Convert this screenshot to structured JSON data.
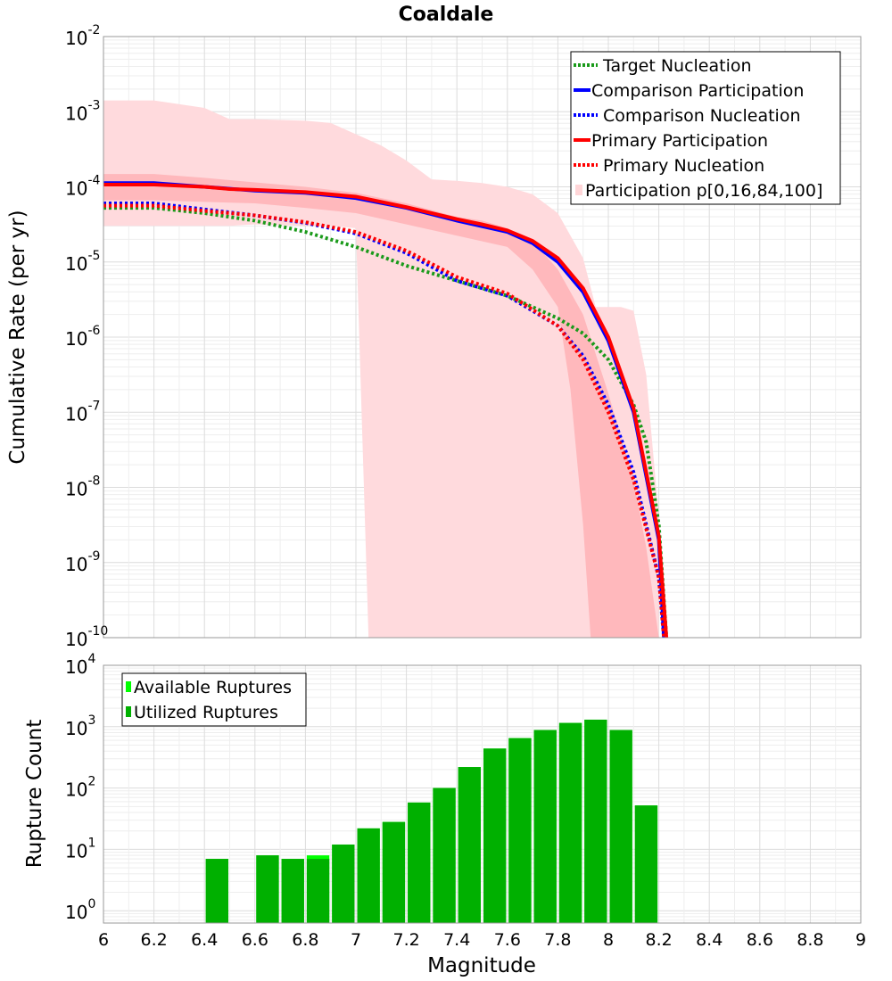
{
  "chart_data": [
    {
      "type": "line",
      "title": "Coaldale",
      "xlabel": "",
      "ylabel": "Cumulative Rate (per yr)",
      "xlim": [
        6,
        9
      ],
      "ylim_log10": [
        -10,
        -2
      ],
      "y_ticks": [
        {
          "base": "10",
          "exp": "-2"
        },
        {
          "base": "10",
          "exp": "-3"
        },
        {
          "base": "10",
          "exp": "-4"
        },
        {
          "base": "10",
          "exp": "-5"
        },
        {
          "base": "10",
          "exp": "-6"
        },
        {
          "base": "10",
          "exp": "-7"
        },
        {
          "base": "10",
          "exp": "-8"
        },
        {
          "base": "10",
          "exp": "-9"
        },
        {
          "base": "10",
          "exp": "-10"
        }
      ],
      "legend": {
        "placement": "top-right",
        "entries": [
          {
            "label": "Target Nucleation",
            "color": "#1a9a1a",
            "style": "dotted"
          },
          {
            "label": "Comparison Participation",
            "color": "#0000ff",
            "style": "solid"
          },
          {
            "label": "Comparison Nucleation",
            "color": "#0000ff",
            "style": "dotted"
          },
          {
            "label": "Primary Participation",
            "color": "#ff0000",
            "style": "solid"
          },
          {
            "label": "Primary Nucleation",
            "color": "#ff0000",
            "style": "dotted"
          },
          {
            "label": "Participation p[0,16,84,100]",
            "color": "#ffd6d8",
            "style": "band"
          }
        ]
      },
      "bands": [
        {
          "name": "p0-p100",
          "color": "#ffdadd",
          "upper": [
            [
              6.0,
              -2.85
            ],
            [
              6.2,
              -2.85
            ],
            [
              6.4,
              -2.95
            ],
            [
              6.5,
              -3.1
            ],
            [
              6.6,
              -3.1
            ],
            [
              6.8,
              -3.12
            ],
            [
              6.9,
              -3.15
            ],
            [
              7.0,
              -3.3
            ],
            [
              7.1,
              -3.45
            ],
            [
              7.2,
              -3.65
            ],
            [
              7.3,
              -3.9
            ],
            [
              7.4,
              -3.92
            ],
            [
              7.5,
              -3.95
            ],
            [
              7.6,
              -4.0
            ],
            [
              7.7,
              -4.1
            ],
            [
              7.8,
              -4.35
            ],
            [
              7.9,
              -4.95
            ],
            [
              7.95,
              -5.6
            ],
            [
              8.0,
              -5.6
            ],
            [
              8.05,
              -5.6
            ],
            [
              8.1,
              -5.65
            ],
            [
              8.15,
              -6.5
            ],
            [
              8.2,
              -8.4
            ],
            [
              8.2,
              -10
            ]
          ],
          "lower": [
            [
              6.0,
              -4.52
            ],
            [
              6.2,
              -4.52
            ],
            [
              6.4,
              -4.52
            ],
            [
              6.5,
              -4.52
            ],
            [
              6.6,
              -4.5
            ],
            [
              6.8,
              -4.52
            ],
            [
              6.9,
              -4.52
            ],
            [
              7.0,
              -4.55
            ],
            [
              7.05,
              -10
            ]
          ]
        },
        {
          "name": "p16-p84",
          "color": "#ffb8bc",
          "upper": [
            [
              6.0,
              -3.83
            ],
            [
              6.2,
              -3.83
            ],
            [
              6.4,
              -3.88
            ],
            [
              6.6,
              -3.94
            ],
            [
              6.8,
              -4.0
            ],
            [
              7.0,
              -4.08
            ],
            [
              7.2,
              -4.22
            ],
            [
              7.4,
              -4.4
            ],
            [
              7.5,
              -4.45
            ],
            [
              7.6,
              -4.55
            ],
            [
              7.7,
              -4.72
            ],
            [
              7.8,
              -5.1
            ],
            [
              7.9,
              -5.7
            ],
            [
              8.0,
              -6.75
            ],
            [
              8.1,
              -7.9
            ],
            [
              8.15,
              -8.8
            ],
            [
              8.2,
              -10
            ]
          ],
          "lower": [
            [
              6.0,
              -4.18
            ],
            [
              6.2,
              -4.18
            ],
            [
              6.4,
              -4.2
            ],
            [
              6.6,
              -4.22
            ],
            [
              6.8,
              -4.28
            ],
            [
              7.0,
              -4.35
            ],
            [
              7.2,
              -4.5
            ],
            [
              7.4,
              -4.65
            ],
            [
              7.6,
              -4.8
            ],
            [
              7.7,
              -5.1
            ],
            [
              7.8,
              -5.6
            ],
            [
              7.85,
              -6.7
            ],
            [
              7.9,
              -8.5
            ],
            [
              7.93,
              -10
            ],
            [
              8.13,
              -10
            ]
          ]
        }
      ],
      "series": [
        {
          "name": "Target Nucleation",
          "color": "#1a9a1a",
          "style": "dotted",
          "x": [
            6.0,
            6.2,
            6.4,
            6.6,
            6.8,
            7.0,
            7.2,
            7.4,
            7.6,
            7.8,
            7.9,
            8.0,
            8.1,
            8.15,
            8.2,
            8.22,
            8.23
          ],
          "y": [
            -4.28,
            -4.28,
            -4.35,
            -4.45,
            -4.6,
            -4.8,
            -5.05,
            -5.25,
            -5.45,
            -5.75,
            -5.95,
            -6.3,
            -6.9,
            -7.4,
            -8.5,
            -9.5,
            -10
          ]
        },
        {
          "name": "Comparison Participation",
          "color": "#0000ff",
          "style": "solid",
          "x": [
            6.0,
            6.2,
            6.4,
            6.6,
            6.8,
            7.0,
            7.2,
            7.4,
            7.6,
            7.7,
            7.8,
            7.9,
            8.0,
            8.1,
            8.2,
            8.22
          ],
          "y": [
            -3.95,
            -3.95,
            -4.0,
            -4.05,
            -4.08,
            -4.15,
            -4.28,
            -4.45,
            -4.6,
            -4.75,
            -5.0,
            -5.4,
            -6.05,
            -7.0,
            -8.7,
            -10
          ]
        },
        {
          "name": "Comparison Nucleation",
          "color": "#0000ff",
          "style": "dotted",
          "x": [
            6.0,
            6.2,
            6.4,
            6.6,
            6.8,
            7.0,
            7.2,
            7.4,
            7.6,
            7.8,
            7.9,
            8.0,
            8.1,
            8.2,
            8.22
          ],
          "y": [
            -4.22,
            -4.22,
            -4.3,
            -4.38,
            -4.48,
            -4.62,
            -4.88,
            -5.25,
            -5.45,
            -5.85,
            -6.25,
            -6.9,
            -7.8,
            -9.2,
            -10
          ]
        },
        {
          "name": "Primary Participation",
          "color": "#ff0000",
          "style": "solid",
          "x": [
            6.0,
            6.2,
            6.4,
            6.5,
            6.6,
            6.8,
            7.0,
            7.1,
            7.2,
            7.3,
            7.4,
            7.5,
            7.6,
            7.7,
            7.8,
            7.9,
            8.0,
            8.1,
            8.2,
            8.23
          ],
          "y": [
            -3.97,
            -3.97,
            -4.0,
            -4.03,
            -4.04,
            -4.07,
            -4.13,
            -4.2,
            -4.27,
            -4.35,
            -4.43,
            -4.5,
            -4.58,
            -4.72,
            -4.95,
            -5.35,
            -6.0,
            -6.95,
            -8.65,
            -10
          ]
        },
        {
          "name": "Primary Nucleation",
          "color": "#ff0000",
          "style": "dotted",
          "x": [
            6.0,
            6.2,
            6.4,
            6.6,
            6.8,
            7.0,
            7.2,
            7.4,
            7.6,
            7.8,
            7.9,
            8.0,
            8.1,
            8.2,
            8.22
          ],
          "y": [
            -4.25,
            -4.25,
            -4.32,
            -4.38,
            -4.47,
            -4.6,
            -4.85,
            -5.2,
            -5.42,
            -5.85,
            -6.3,
            -7.0,
            -7.9,
            -9.2,
            -10
          ]
        }
      ]
    },
    {
      "type": "bar",
      "xlabel": "Magnitude",
      "ylabel": "Rupture Count",
      "xlim": [
        6,
        9
      ],
      "ylim_log10": [
        -0.2,
        4
      ],
      "y_ticks": [
        {
          "base": "10",
          "exp": "4"
        },
        {
          "base": "10",
          "exp": "3"
        },
        {
          "base": "10",
          "exp": "2"
        },
        {
          "base": "10",
          "exp": "1"
        },
        {
          "base": "10",
          "exp": "0"
        }
      ],
      "x_ticks": [
        "6",
        "6.2",
        "6.4",
        "6.6",
        "6.8",
        "7",
        "7.2",
        "7.4",
        "7.6",
        "7.8",
        "8",
        "8.2",
        "8.4",
        "8.6",
        "8.8",
        "9"
      ],
      "legend": {
        "placement": "top-left",
        "entries": [
          {
            "label": "Available Ruptures",
            "color": "#00ff00"
          },
          {
            "label": "Utilized Ruptures",
            "color": "#00b000"
          }
        ]
      },
      "bin_width": 0.1,
      "bins_center": [
        6.45,
        6.65,
        6.75,
        6.85,
        6.95,
        7.05,
        7.15,
        7.25,
        7.35,
        7.45,
        7.55,
        7.65,
        7.75,
        7.85,
        7.95,
        8.05,
        8.15
      ],
      "available": [
        7,
        8,
        7,
        8,
        12,
        22,
        28,
        58,
        100,
        220,
        440,
        650,
        880,
        1150,
        1300,
        880,
        52
      ],
      "utilized": [
        7,
        8,
        7,
        7,
        12,
        22,
        28,
        58,
        100,
        220,
        440,
        650,
        880,
        1150,
        1300,
        880,
        52
      ]
    }
  ]
}
